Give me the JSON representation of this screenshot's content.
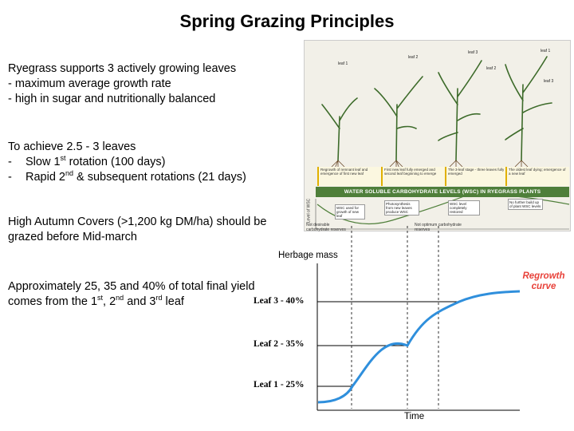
{
  "slide": {
    "title": "Spring Grazing Principles"
  },
  "text": {
    "p1": {
      "l1": "Ryegrass supports 3 actively growing leaves",
      "l2": "- maximum average growth rate",
      "l3": "- high in sugar and nutritionally balanced"
    },
    "p2": {
      "l1": "To achieve 2.5 - 3 leaves",
      "l2_prefix": "-",
      "l2a": "Slow 1",
      "l2sup": "st",
      "l2b": " rotation (100 days)",
      "l3_prefix": "-",
      "l3a": "Rapid 2",
      "l3sup": "nd",
      "l3b": " & subsequent rotations (21 days)"
    },
    "p3": {
      "l1": "High Autumn Covers (>1,200 kg DM/ha) should be",
      "l2": "grazed before Mid-march"
    },
    "p4": {
      "l1": "Approximately 25, 35 and 40% of total final yield",
      "l2a": "comes from the 1",
      "s1": "st",
      "l2b": ", 2",
      "s2": "nd",
      "l2c": " and 3",
      "s3": "rd",
      "l2d": " leaf"
    }
  },
  "diagram": {
    "leaves": [
      "leaf 1",
      "leaf 2",
      "leaf 3",
      "leaf 1",
      "leaf 2",
      "leaf 3"
    ],
    "wsc_heading": "WATER SOLUBLE CARBOHYDRATE LEVELS (WSC) IN RYEGRASS PLANTS",
    "y_label": "Level of WSC",
    "stages": [
      "Regrowth of remnant leaf and emergence of first new leaf",
      "First new leaf fully emerged and second leaf beginning to emerge",
      "The 3-leaf stage - three leaves fully emerged",
      "The oldest leaf dying; emergence of a new leaf"
    ],
    "boxes": [
      "WSC used for growth of new leaf",
      "Photosynthesis from new leaves produce WSC",
      "WSC level completely restored",
      "No further build up of plant WSC levels",
      "Plant WSC low in photosynthesis energy for growth"
    ],
    "bottom_labels": [
      "Not desirable carbohydrate reserves",
      "Not optimum carbohydrate reserves"
    ]
  },
  "graph": {
    "herbage_label": "Herbage mass",
    "time_label": "Time",
    "regrowth_label": "Regrowth curve",
    "leaf3": "Leaf 3 - 40%",
    "leaf2": "Leaf 2 - 35%",
    "leaf1": "Leaf 1 - 25%"
  },
  "colors": {
    "curve": "#2f8fdc",
    "regrowth": "#e8423a",
    "wsc_bar": "#4f7f3a"
  }
}
